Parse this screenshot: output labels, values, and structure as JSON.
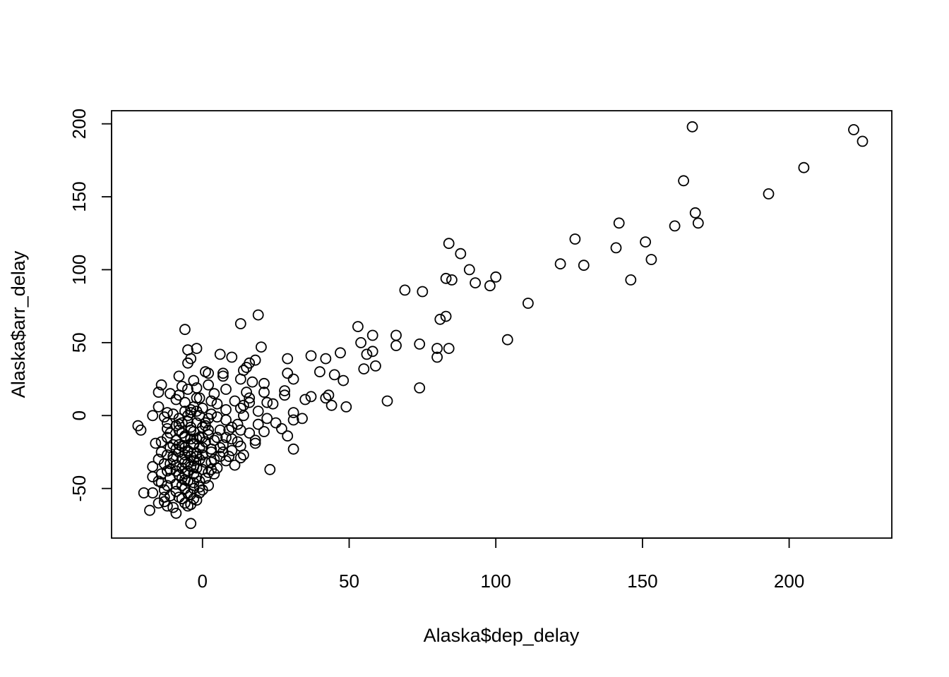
{
  "chart_data": {
    "type": "scatter",
    "title": "",
    "xlabel": "Alaska$dep_delay",
    "ylabel": "Alaska$arr_delay",
    "xlim": [
      -31,
      235
    ],
    "ylim": [
      -84,
      209
    ],
    "xticks": [
      0,
      50,
      100,
      150,
      200
    ],
    "yticks": [
      -50,
      0,
      50,
      100,
      150,
      200
    ],
    "grid": false,
    "points": [
      [
        167,
        198
      ],
      [
        222,
        196
      ],
      [
        225,
        188
      ],
      [
        205,
        170
      ],
      [
        164,
        161
      ],
      [
        193,
        152
      ],
      [
        168,
        139
      ],
      [
        169,
        132
      ],
      [
        142,
        132
      ],
      [
        161,
        130
      ],
      [
        127,
        121
      ],
      [
        84,
        118
      ],
      [
        151,
        119
      ],
      [
        141,
        115
      ],
      [
        88,
        111
      ],
      [
        153,
        107
      ],
      [
        122,
        104
      ],
      [
        130,
        103
      ],
      [
        91,
        100
      ],
      [
        100,
        95
      ],
      [
        83,
        94
      ],
      [
        85,
        93
      ],
      [
        146,
        93
      ],
      [
        93,
        91
      ],
      [
        98,
        89
      ],
      [
        69,
        86
      ],
      [
        75,
        85
      ],
      [
        111,
        77
      ],
      [
        19,
        69
      ],
      [
        83,
        68
      ],
      [
        81,
        66
      ],
      [
        13,
        63
      ],
      [
        53,
        61
      ],
      [
        -6,
        59
      ],
      [
        58,
        55
      ],
      [
        66,
        55
      ],
      [
        104,
        52
      ],
      [
        54,
        50
      ],
      [
        74,
        49
      ],
      [
        66,
        48
      ],
      [
        20,
        47
      ],
      [
        -2,
        46
      ],
      [
        84,
        46
      ],
      [
        80,
        46
      ],
      [
        -5,
        45
      ],
      [
        47,
        43
      ],
      [
        58,
        44
      ],
      [
        56,
        42
      ],
      [
        6,
        42
      ],
      [
        37,
        41
      ],
      [
        10,
        40
      ],
      [
        80,
        40
      ],
      [
        29,
        39
      ],
      [
        -4,
        39
      ],
      [
        18,
        38
      ],
      [
        42,
        39
      ],
      [
        16,
        36
      ],
      [
        -5,
        36
      ],
      [
        15,
        33
      ],
      [
        14,
        31
      ],
      [
        59,
        34
      ],
      [
        55,
        32
      ],
      [
        40,
        30
      ],
      [
        1,
        30
      ],
      [
        2,
        29
      ],
      [
        29,
        29
      ],
      [
        7,
        29
      ],
      [
        45,
        28
      ],
      [
        7,
        27
      ],
      [
        -8,
        27
      ],
      [
        13,
        25
      ],
      [
        31,
        25
      ],
      [
        48,
        24
      ],
      [
        -3,
        24
      ],
      [
        17,
        23
      ],
      [
        21,
        22
      ],
      [
        -14,
        21
      ],
      [
        2,
        21
      ],
      [
        -7,
        20
      ],
      [
        -2,
        19
      ],
      [
        8,
        18
      ],
      [
        28,
        17
      ],
      [
        15,
        16
      ],
      [
        -15,
        16
      ],
      [
        21,
        16
      ],
      [
        -11,
        15
      ],
      [
        4,
        15
      ],
      [
        28,
        14
      ],
      [
        43,
        14
      ],
      [
        37,
        13
      ],
      [
        42,
        12
      ],
      [
        35,
        11
      ],
      [
        16,
        12
      ],
      [
        -1,
        12
      ],
      [
        -9,
        11
      ],
      [
        3,
        10
      ],
      [
        11,
        10
      ],
      [
        63,
        10
      ],
      [
        74,
        19
      ],
      [
        22,
        9
      ],
      [
        16,
        9
      ],
      [
        -6,
        9
      ],
      [
        24,
        8
      ],
      [
        5,
        8
      ],
      [
        44,
        7
      ],
      [
        14,
        7
      ],
      [
        -15,
        6
      ],
      [
        49,
        6
      ],
      [
        13,
        5
      ],
      [
        -4,
        4
      ],
      [
        8,
        4
      ],
      [
        19,
        3
      ],
      [
        -2,
        3
      ],
      [
        -12,
        2
      ],
      [
        31,
        2
      ],
      [
        -10,
        1
      ],
      [
        3,
        1
      ],
      [
        -17,
        0
      ],
      [
        14,
        0
      ],
      [
        -13,
        -1
      ],
      [
        5,
        -1
      ],
      [
        22,
        -2
      ],
      [
        -8,
        -2
      ],
      [
        34,
        -2
      ],
      [
        31,
        -3
      ],
      [
        8,
        -3
      ],
      [
        -5,
        -4
      ],
      [
        25,
        -5
      ],
      [
        -12,
        -5
      ],
      [
        12,
        -6
      ],
      [
        19,
        -6
      ],
      [
        1,
        -7
      ],
      [
        -9,
        -7
      ],
      [
        27,
        -9
      ],
      [
        -21,
        -10
      ],
      [
        -12,
        -9
      ],
      [
        -22,
        -7
      ],
      [
        -8,
        -10
      ],
      [
        9,
        -10
      ],
      [
        21,
        -11
      ],
      [
        -3,
        -11
      ],
      [
        13,
        -10
      ],
      [
        -11,
        -12
      ],
      [
        16,
        -12
      ],
      [
        2,
        -13
      ],
      [
        29,
        -14
      ],
      [
        -6,
        -14
      ],
      [
        -1,
        -15
      ],
      [
        10,
        -16
      ],
      [
        -9,
        -17
      ],
      [
        18,
        -17
      ],
      [
        4,
        -17
      ],
      [
        -14,
        -18
      ],
      [
        18,
        -19
      ],
      [
        -16,
        -19
      ],
      [
        -3,
        -19
      ],
      [
        7,
        -20
      ],
      [
        -7,
        -21
      ],
      [
        13,
        -21
      ],
      [
        0,
        -22
      ],
      [
        -11,
        -22
      ],
      [
        31,
        -23
      ],
      [
        3,
        -23
      ],
      [
        -5,
        -24
      ],
      [
        10,
        -24
      ],
      [
        -14,
        -25
      ],
      [
        -8,
        -25
      ],
      [
        -2,
        -26
      ],
      [
        14,
        -27
      ],
      [
        -12,
        -27
      ],
      [
        6,
        -28
      ],
      [
        -4,
        -28
      ],
      [
        13,
        -29
      ],
      [
        -10,
        -30
      ],
      [
        -1,
        -30
      ],
      [
        -15,
        -30
      ],
      [
        8,
        -31
      ],
      [
        -6,
        -32
      ],
      [
        3,
        -32
      ],
      [
        -13,
        -33
      ],
      [
        11,
        -34
      ],
      [
        -9,
        -34
      ],
      [
        -3,
        -35
      ],
      [
        -17,
        -35
      ],
      [
        5,
        -36
      ],
      [
        -7,
        -36
      ],
      [
        0,
        -37
      ],
      [
        -11,
        -37
      ],
      [
        23,
        -37
      ],
      [
        -5,
        -38
      ],
      [
        2,
        -39
      ],
      [
        -14,
        -40
      ],
      [
        -8,
        -41
      ],
      [
        -2,
        -42
      ],
      [
        -17,
        -42
      ],
      [
        -11,
        -43
      ],
      [
        -6,
        -44
      ],
      [
        -15,
        -45
      ],
      [
        -3,
        -46
      ],
      [
        -9,
        -47
      ],
      [
        -12,
        -48
      ],
      [
        -1,
        -49
      ],
      [
        -6,
        -50
      ],
      [
        -13,
        -51
      ],
      [
        0,
        -51
      ],
      [
        -9,
        -52
      ],
      [
        -20,
        -53
      ],
      [
        -17,
        -53
      ],
      [
        -4,
        -54
      ],
      [
        -11,
        -55
      ],
      [
        -13,
        -56
      ],
      [
        -7,
        -57
      ],
      [
        -2,
        -58
      ],
      [
        -13,
        -59
      ],
      [
        -6,
        -60
      ],
      [
        -15,
        -60
      ],
      [
        -4,
        -61
      ],
      [
        -12,
        -62
      ],
      [
        -10,
        -63
      ],
      [
        -18,
        -65
      ],
      [
        -9,
        -67
      ],
      [
        -4,
        -74
      ],
      [
        -7,
        -30
      ],
      [
        -5,
        -25
      ],
      [
        -3,
        -20
      ],
      [
        -6,
        -15
      ],
      [
        -4,
        -10
      ],
      [
        -2,
        -5
      ],
      [
        -7,
        -5
      ],
      [
        -5,
        0
      ],
      [
        -1,
        0
      ],
      [
        1,
        -5
      ],
      [
        2,
        -10
      ],
      [
        0,
        -15
      ],
      [
        -8,
        -20
      ],
      [
        -4,
        -35
      ],
      [
        -6,
        -40
      ],
      [
        -2,
        -28
      ],
      [
        -5,
        -45
      ],
      [
        -3,
        -50
      ],
      [
        -7,
        -48
      ],
      [
        -1,
        -22
      ],
      [
        1,
        -18
      ],
      [
        -4,
        -8
      ],
      [
        -6,
        3
      ],
      [
        -3,
        6
      ],
      [
        0,
        5
      ],
      [
        -8,
        14
      ],
      [
        -5,
        18
      ],
      [
        -2,
        12
      ],
      [
        3,
        -25
      ],
      [
        5,
        -15
      ],
      [
        -9,
        -38
      ],
      [
        -10,
        -28
      ],
      [
        1,
        -32
      ],
      [
        4,
        -40
      ],
      [
        -12,
        -15
      ],
      [
        -7,
        -12
      ],
      [
        -3,
        -31
      ],
      [
        -5,
        -53
      ],
      [
        -1,
        -45
      ],
      [
        2,
        -48
      ],
      [
        -8,
        -56
      ],
      [
        6,
        -22
      ],
      [
        -4,
        -16
      ],
      [
        -6,
        -27
      ],
      [
        0,
        -27
      ],
      [
        -2,
        -36
      ],
      [
        3,
        -37
      ],
      [
        -9,
        -23
      ],
      [
        -5,
        -33
      ],
      [
        -7,
        -43
      ],
      [
        -11,
        -33
      ],
      [
        -3,
        -40
      ],
      [
        1,
        -43
      ],
      [
        -6,
        -22
      ],
      [
        4,
        -30
      ],
      [
        -2,
        -16
      ],
      [
        0,
        -8
      ],
      [
        2,
        -2
      ],
      [
        -4,
        2
      ],
      [
        -8,
        -6
      ],
      [
        -10,
        -20
      ],
      [
        -12,
        -38
      ],
      [
        -14,
        -46
      ],
      [
        6,
        -10
      ],
      [
        8,
        -15
      ],
      [
        10,
        -8
      ],
      [
        12,
        -18
      ],
      [
        -1,
        -53
      ],
      [
        -3,
        -57
      ],
      [
        -5,
        -62
      ],
      [
        7,
        -25
      ],
      [
        9,
        -28
      ]
    ]
  }
}
